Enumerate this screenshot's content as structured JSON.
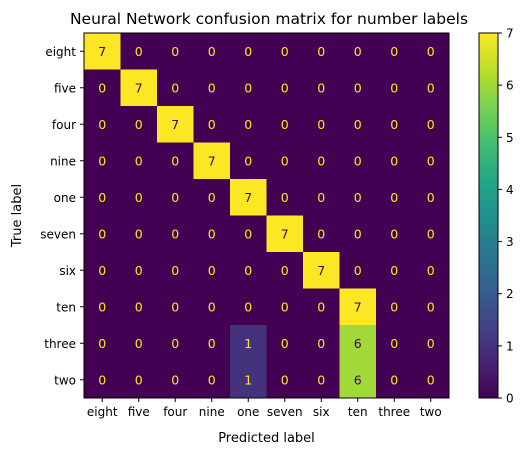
{
  "chart_data": {
    "type": "heatmap",
    "title": "Neural Network confusion matrix for number labels",
    "xlabel": "Predicted label",
    "ylabel": "True label",
    "x_categories": [
      "eight",
      "five",
      "four",
      "nine",
      "one",
      "seven",
      "six",
      "ten",
      "three",
      "two"
    ],
    "y_categories": [
      "eight",
      "five",
      "four",
      "nine",
      "one",
      "seven",
      "six",
      "ten",
      "three",
      "two"
    ],
    "matrix": [
      [
        7,
        0,
        0,
        0,
        0,
        0,
        0,
        0,
        0,
        0
      ],
      [
        0,
        7,
        0,
        0,
        0,
        0,
        0,
        0,
        0,
        0
      ],
      [
        0,
        0,
        7,
        0,
        0,
        0,
        0,
        0,
        0,
        0
      ],
      [
        0,
        0,
        0,
        7,
        0,
        0,
        0,
        0,
        0,
        0
      ],
      [
        0,
        0,
        0,
        0,
        7,
        0,
        0,
        0,
        0,
        0
      ],
      [
        0,
        0,
        0,
        0,
        0,
        7,
        0,
        0,
        0,
        0
      ],
      [
        0,
        0,
        0,
        0,
        0,
        0,
        7,
        0,
        0,
        0
      ],
      [
        0,
        0,
        0,
        0,
        0,
        0,
        0,
        7,
        0,
        0
      ],
      [
        0,
        0,
        0,
        0,
        1,
        0,
        0,
        6,
        0,
        0
      ],
      [
        0,
        0,
        0,
        0,
        1,
        0,
        0,
        6,
        0,
        0
      ]
    ],
    "colorbar": {
      "min": 0,
      "max": 7,
      "ticks": [
        "0",
        "1",
        "2",
        "3",
        "4",
        "5",
        "6",
        "7"
      ]
    },
    "colormap": "viridis",
    "grid": false
  }
}
